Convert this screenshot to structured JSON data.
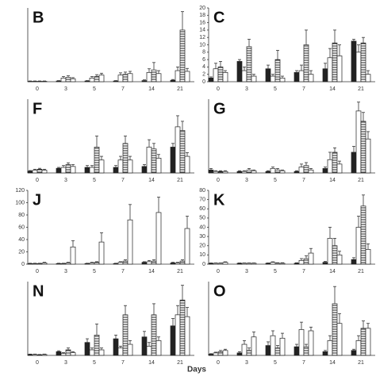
{
  "xlabel": "Days",
  "chart_data": [
    {
      "type": "bar",
      "title": "B",
      "categories": [
        "0",
        "3",
        "5",
        "7",
        "14",
        "21"
      ],
      "ylim": [
        0,
        200
      ],
      "series": [
        {
          "color": "#222222",
          "values": [
            1,
            2,
            2,
            2,
            3,
            4
          ],
          "errors": [
            1,
            1,
            1,
            1,
            2,
            2
          ]
        },
        {
          "color": "#ffffff",
          "values": [
            1,
            10,
            10,
            18,
            25,
            30
          ],
          "errors": [
            1,
            4,
            4,
            6,
            10,
            10
          ]
        },
        {
          "color": "#ffffff",
          "pattern": "horizontal-lines",
          "values": [
            1,
            12,
            14,
            20,
            32,
            140
          ],
          "errors": [
            1,
            4,
            5,
            6,
            20,
            50
          ]
        },
        {
          "color": "#ffffff",
          "values": [
            1,
            8,
            18,
            22,
            22,
            28
          ],
          "errors": [
            1,
            3,
            5,
            6,
            8,
            8
          ]
        }
      ]
    },
    {
      "type": "bar",
      "title": "C",
      "categories": [
        "0",
        "3",
        "5",
        "7",
        "14",
        "21"
      ],
      "ylim": [
        0,
        20
      ],
      "yticks": [
        0,
        2,
        4,
        6,
        8,
        10,
        12,
        14,
        16,
        18,
        20
      ],
      "series": [
        {
          "color": "#222222",
          "values": [
            1,
            5.5,
            3.5,
            2.5,
            3.5,
            11
          ],
          "errors": [
            0.3,
            0.5,
            1,
            0.5,
            1.5,
            0.5
          ]
        },
        {
          "color": "#ffffff",
          "values": [
            3.5,
            3,
            1.5,
            3,
            6.5,
            8
          ],
          "errors": [
            1.5,
            1,
            0.5,
            1.5,
            2.5,
            2
          ]
        },
        {
          "color": "#ffffff",
          "pattern": "horizontal-lines",
          "values": [
            4,
            9.5,
            6,
            10,
            10.5,
            10.5
          ],
          "errors": [
            1.5,
            2,
            2.5,
            4,
            3.5,
            1.5
          ]
        },
        {
          "color": "#ffffff",
          "values": [
            2.5,
            1.5,
            1,
            2,
            7,
            2
          ],
          "errors": [
            0.5,
            0.5,
            0.5,
            1,
            3,
            1
          ]
        }
      ]
    },
    {
      "type": "bar",
      "title": "F",
      "categories": [
        "0",
        "3",
        "5",
        "7",
        "14",
        "21"
      ],
      "ylim": [
        0,
        40
      ],
      "series": [
        {
          "color": "#222222",
          "values": [
            1,
            2.5,
            3,
            3,
            3.5,
            14
          ],
          "errors": [
            0.3,
            0.5,
            1,
            1,
            1,
            2
          ]
        },
        {
          "color": "#ffffff",
          "values": [
            1.5,
            3,
            3,
            7,
            14,
            25
          ],
          "errors": [
            0.5,
            1,
            1,
            2,
            4,
            6
          ]
        },
        {
          "color": "#ffffff",
          "pattern": "horizontal-lines",
          "values": [
            2,
            4.5,
            14,
            16,
            13,
            23
          ],
          "errors": [
            0.5,
            1,
            6,
            4,
            3,
            5
          ]
        },
        {
          "color": "#ffffff",
          "values": [
            1.5,
            3.5,
            7,
            7,
            8,
            9
          ],
          "errors": [
            0.5,
            1,
            2,
            2,
            2,
            2
          ]
        }
      ]
    },
    {
      "type": "bar",
      "title": "G",
      "categories": [
        "0",
        "3",
        "5",
        "7",
        "14",
        "21"
      ],
      "ylim": [
        0,
        50
      ],
      "series": [
        {
          "color": "#222222",
          "values": [
            2,
            1,
            1,
            1,
            3,
            14
          ],
          "errors": [
            1,
            0.5,
            0.5,
            0.5,
            1,
            4
          ]
        },
        {
          "color": "#ffffff",
          "values": [
            1,
            1,
            3,
            4,
            9,
            42
          ],
          "errors": [
            0.5,
            0.5,
            1,
            2,
            5,
            6
          ]
        },
        {
          "color": "#ffffff",
          "pattern": "horizontal-lines",
          "values": [
            1,
            2,
            2,
            5,
            14,
            35
          ],
          "errors": [
            0.5,
            1,
            1,
            2,
            3,
            6
          ]
        },
        {
          "color": "#ffffff",
          "values": [
            1,
            1.5,
            1.5,
            2,
            6,
            23
          ],
          "errors": [
            0.5,
            0.5,
            0.5,
            1,
            2,
            5
          ]
        }
      ]
    },
    {
      "type": "bar",
      "title": "J",
      "categories": [
        "0",
        "3",
        "5",
        "7",
        "14",
        "21"
      ],
      "ylim": [
        0,
        120
      ],
      "yticks": [
        0,
        20,
        40,
        60,
        80,
        100,
        120
      ],
      "series": [
        {
          "color": "#222222",
          "values": [
            1,
            1,
            1,
            1,
            3,
            2
          ],
          "errors": [
            0.5,
            0.5,
            0.5,
            0.5,
            1,
            1
          ]
        },
        {
          "color": "#ffffff",
          "values": [
            1,
            1,
            2,
            3,
            4,
            2
          ],
          "errors": [
            0.5,
            0.5,
            1,
            1,
            2,
            1
          ]
        },
        {
          "color": "#ffffff",
          "pattern": "horizontal-lines",
          "values": [
            1,
            2,
            3,
            5,
            5,
            5
          ],
          "errors": [
            0.5,
            1,
            1,
            2,
            2,
            2
          ]
        },
        {
          "color": "#ffffff",
          "values": [
            2,
            28,
            36,
            72,
            84,
            58
          ],
          "errors": [
            1,
            10,
            15,
            25,
            25,
            20
          ]
        }
      ]
    },
    {
      "type": "bar",
      "title": "K",
      "categories": [
        "0",
        "3",
        "5",
        "7",
        "14",
        "21"
      ],
      "ylim": [
        0,
        80
      ],
      "yticks": [
        0,
        10,
        20,
        30,
        40,
        50,
        60,
        70,
        80
      ],
      "series": [
        {
          "color": "#222222",
          "values": [
            1,
            1,
            1,
            1,
            2,
            5
          ],
          "errors": [
            0.3,
            0.3,
            0.3,
            0.5,
            1,
            2
          ]
        },
        {
          "color": "#ffffff",
          "values": [
            1,
            1,
            2,
            4,
            28,
            40
          ],
          "errors": [
            0.3,
            0.3,
            0.5,
            2,
            12,
            12
          ]
        },
        {
          "color": "#ffffff",
          "pattern": "horizontal-lines",
          "values": [
            1,
            1,
            1,
            6,
            20,
            63
          ],
          "errors": [
            0.3,
            0.3,
            0.5,
            3,
            8,
            12
          ]
        },
        {
          "color": "#ffffff",
          "values": [
            2,
            1,
            1,
            12,
            10,
            16
          ],
          "errors": [
            0.5,
            0.3,
            0.5,
            5,
            4,
            6
          ]
        }
      ]
    },
    {
      "type": "bar",
      "title": "N",
      "categories": [
        "0",
        "3",
        "5",
        "7",
        "14",
        "21"
      ],
      "ylim": [
        0,
        40
      ],
      "series": [
        {
          "color": "#222222",
          "values": [
            0.5,
            2,
            7,
            9,
            10,
            16
          ],
          "errors": [
            0.2,
            0.5,
            2,
            2,
            3,
            4
          ]
        },
        {
          "color": "#ffffff",
          "values": [
            0.5,
            1,
            3,
            4,
            5,
            22
          ],
          "errors": [
            0.2,
            0.5,
            1,
            1,
            2,
            5
          ]
        },
        {
          "color": "#ffffff",
          "pattern": "horizontal-lines",
          "values": [
            0.3,
            3,
            11,
            22,
            22,
            30
          ],
          "errors": [
            0.2,
            1,
            6,
            5,
            6,
            8
          ]
        },
        {
          "color": "#ffffff",
          "values": [
            0.5,
            1.5,
            3,
            6,
            8,
            21
          ],
          "errors": [
            0.2,
            0.5,
            1,
            2,
            2,
            5
          ]
        }
      ]
    },
    {
      "type": "bar",
      "title": "O",
      "categories": [
        "0",
        "3",
        "5",
        "7",
        "14",
        "21"
      ],
      "ylim": [
        0,
        30
      ],
      "series": [
        {
          "color": "#222222",
          "values": [
            0.5,
            1,
            4,
            3.5,
            1.5,
            2
          ],
          "errors": [
            0.2,
            0.5,
            1.5,
            1,
            0.5,
            0.5
          ]
        },
        {
          "color": "#ffffff",
          "values": [
            1,
            4.5,
            8,
            10.5,
            6,
            6
          ],
          "errors": [
            0.3,
            1.5,
            2,
            3,
            2,
            2
          ]
        },
        {
          "color": "#ffffff",
          "pattern": "horizontal-lines",
          "values": [
            1.5,
            2,
            3,
            3.5,
            21,
            11
          ],
          "errors": [
            0.5,
            1,
            1,
            1,
            7,
            3
          ]
        },
        {
          "color": "#ffffff",
          "values": [
            2,
            7.5,
            7,
            10,
            13,
            11
          ],
          "errors": [
            0.5,
            2,
            2,
            1.5,
            4,
            2
          ]
        }
      ]
    }
  ]
}
